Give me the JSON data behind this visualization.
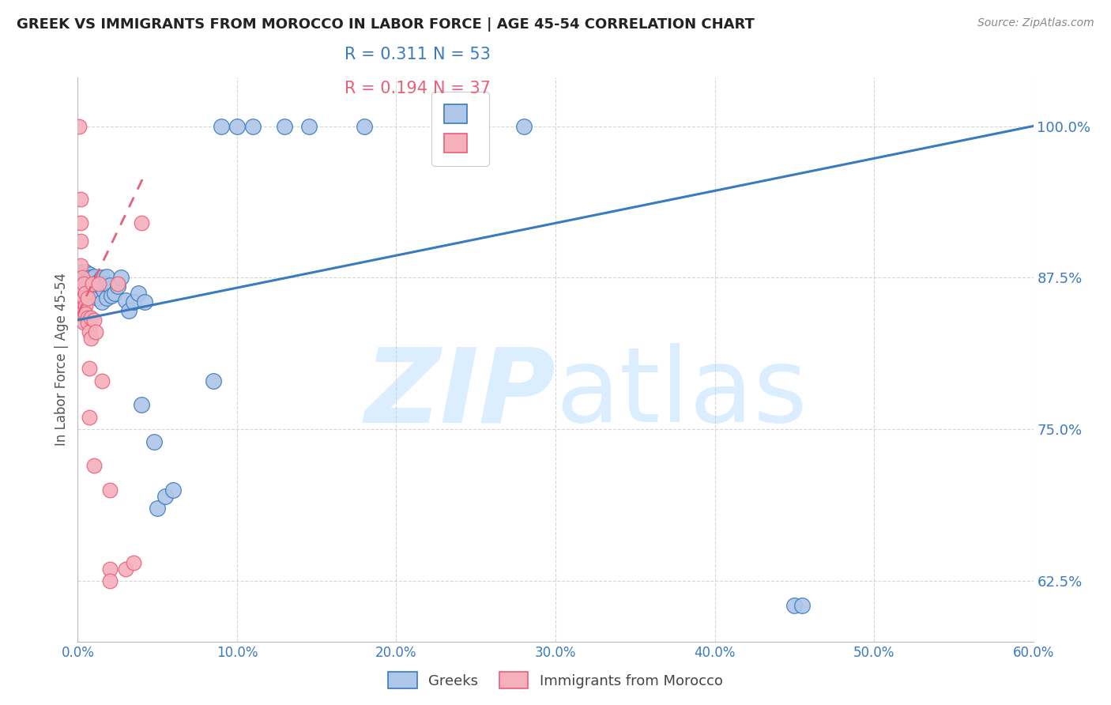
{
  "title": "GREEK VS IMMIGRANTS FROM MOROCCO IN LABOR FORCE | AGE 45-54 CORRELATION CHART",
  "source": "Source: ZipAtlas.com",
  "ylabel": "In Labor Force | Age 45-54",
  "xmin": 0.0,
  "xmax": 0.6,
  "ymin": 0.575,
  "ymax": 1.04,
  "yticks": [
    0.625,
    0.75,
    0.875,
    1.0
  ],
  "ytick_labels": [
    "62.5%",
    "75.0%",
    "87.5%",
    "100.0%"
  ],
  "xticks": [
    0.0,
    0.1,
    0.2,
    0.3,
    0.4,
    0.5,
    0.6
  ],
  "xtick_labels": [
    "0.0%",
    "10.0%",
    "20.0%",
    "30.0%",
    "40.0%",
    "50.0%",
    "60.0%"
  ],
  "legend_r_blue": "0.311",
  "legend_n_blue": "53",
  "legend_r_pink": "0.194",
  "legend_n_pink": "37",
  "blue_color": "#aec6e8",
  "pink_color": "#f5b0bc",
  "line_blue": "#3a7abf",
  "line_pink": "#e8607a",
  "watermark_color": "#daeeff",
  "blue_scatter": [
    [
      0.002,
      0.875
    ],
    [
      0.003,
      0.88
    ],
    [
      0.003,
      0.87
    ],
    [
      0.004,
      0.875
    ],
    [
      0.004,
      0.865
    ],
    [
      0.005,
      0.88
    ],
    [
      0.005,
      0.875
    ],
    [
      0.006,
      0.875
    ],
    [
      0.006,
      0.87
    ],
    [
      0.006,
      0.86
    ],
    [
      0.007,
      0.878
    ],
    [
      0.007,
      0.872
    ],
    [
      0.008,
      0.875
    ],
    [
      0.008,
      0.868
    ],
    [
      0.009,
      0.874
    ],
    [
      0.009,
      0.86
    ],
    [
      0.01,
      0.876
    ],
    [
      0.01,
      0.862
    ],
    [
      0.011,
      0.87
    ],
    [
      0.012,
      0.858
    ],
    [
      0.013,
      0.872
    ],
    [
      0.014,
      0.868
    ],
    [
      0.015,
      0.875
    ],
    [
      0.015,
      0.855
    ],
    [
      0.016,
      0.865
    ],
    [
      0.017,
      0.87
    ],
    [
      0.018,
      0.876
    ],
    [
      0.018,
      0.858
    ],
    [
      0.02,
      0.869
    ],
    [
      0.021,
      0.86
    ],
    [
      0.023,
      0.862
    ],
    [
      0.025,
      0.868
    ],
    [
      0.027,
      0.875
    ],
    [
      0.03,
      0.856
    ],
    [
      0.032,
      0.848
    ],
    [
      0.035,
      0.855
    ],
    [
      0.038,
      0.862
    ],
    [
      0.04,
      0.77
    ],
    [
      0.042,
      0.855
    ],
    [
      0.048,
      0.74
    ],
    [
      0.05,
      0.685
    ],
    [
      0.055,
      0.695
    ],
    [
      0.06,
      0.7
    ],
    [
      0.085,
      0.79
    ],
    [
      0.09,
      1.0
    ],
    [
      0.1,
      1.0
    ],
    [
      0.11,
      1.0
    ],
    [
      0.13,
      1.0
    ],
    [
      0.145,
      1.0
    ],
    [
      0.18,
      1.0
    ],
    [
      0.28,
      1.0
    ],
    [
      0.45,
      0.605
    ],
    [
      0.455,
      0.605
    ]
  ],
  "pink_scatter": [
    [
      0.001,
      1.0
    ],
    [
      0.002,
      0.94
    ],
    [
      0.002,
      0.92
    ],
    [
      0.002,
      0.905
    ],
    [
      0.002,
      0.885
    ],
    [
      0.003,
      0.875
    ],
    [
      0.003,
      0.865
    ],
    [
      0.003,
      0.858
    ],
    [
      0.003,
      0.85
    ],
    [
      0.004,
      0.87
    ],
    [
      0.004,
      0.858
    ],
    [
      0.004,
      0.848
    ],
    [
      0.004,
      0.838
    ],
    [
      0.005,
      0.862
    ],
    [
      0.005,
      0.852
    ],
    [
      0.005,
      0.845
    ],
    [
      0.006,
      0.858
    ],
    [
      0.006,
      0.842
    ],
    [
      0.006,
      0.838
    ],
    [
      0.007,
      0.83
    ],
    [
      0.007,
      0.8
    ],
    [
      0.007,
      0.76
    ],
    [
      0.008,
      0.842
    ],
    [
      0.008,
      0.825
    ],
    [
      0.009,
      0.87
    ],
    [
      0.01,
      0.84
    ],
    [
      0.01,
      0.72
    ],
    [
      0.011,
      0.83
    ],
    [
      0.013,
      0.87
    ],
    [
      0.015,
      0.79
    ],
    [
      0.02,
      0.7
    ],
    [
      0.02,
      0.635
    ],
    [
      0.02,
      0.625
    ],
    [
      0.025,
      0.87
    ],
    [
      0.03,
      0.635
    ],
    [
      0.035,
      0.64
    ],
    [
      0.04,
      0.92
    ]
  ],
  "blue_line_x": [
    0.0,
    0.6
  ],
  "blue_line_y": [
    0.84,
    1.0
  ],
  "pink_line_x": [
    0.0,
    0.042
  ],
  "pink_line_y": [
    0.845,
    0.96
  ],
  "background_color": "#ffffff",
  "grid_color": "#cccccc",
  "title_color": "#222222",
  "tick_color": "#3a7abf"
}
